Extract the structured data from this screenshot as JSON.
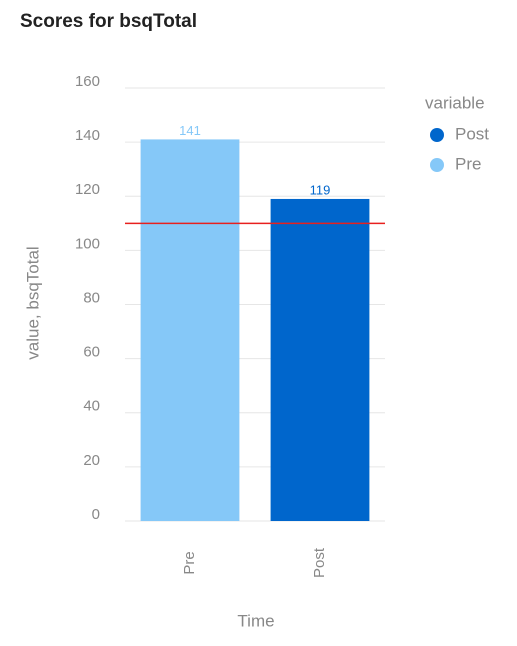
{
  "chart_data": {
    "type": "bar",
    "title": "Scores for bsqTotal",
    "x_label": "Time",
    "y_label": "value, bsqTotal",
    "categories": [
      "Pre",
      "Post"
    ],
    "series": [
      {
        "name": "Post",
        "color": "#0066cc",
        "values": [
          null,
          119
        ]
      },
      {
        "name": "Pre",
        "color": "#85c8f8",
        "values": [
          141,
          null
        ]
      }
    ],
    "legend_title": "variable",
    "reference_line": {
      "value": 110,
      "color": "#e8201e"
    },
    "ylim": [
      0,
      160
    ],
    "yticks": [
      0,
      20,
      40,
      60,
      80,
      100,
      120,
      140,
      160
    ],
    "grid": true
  }
}
